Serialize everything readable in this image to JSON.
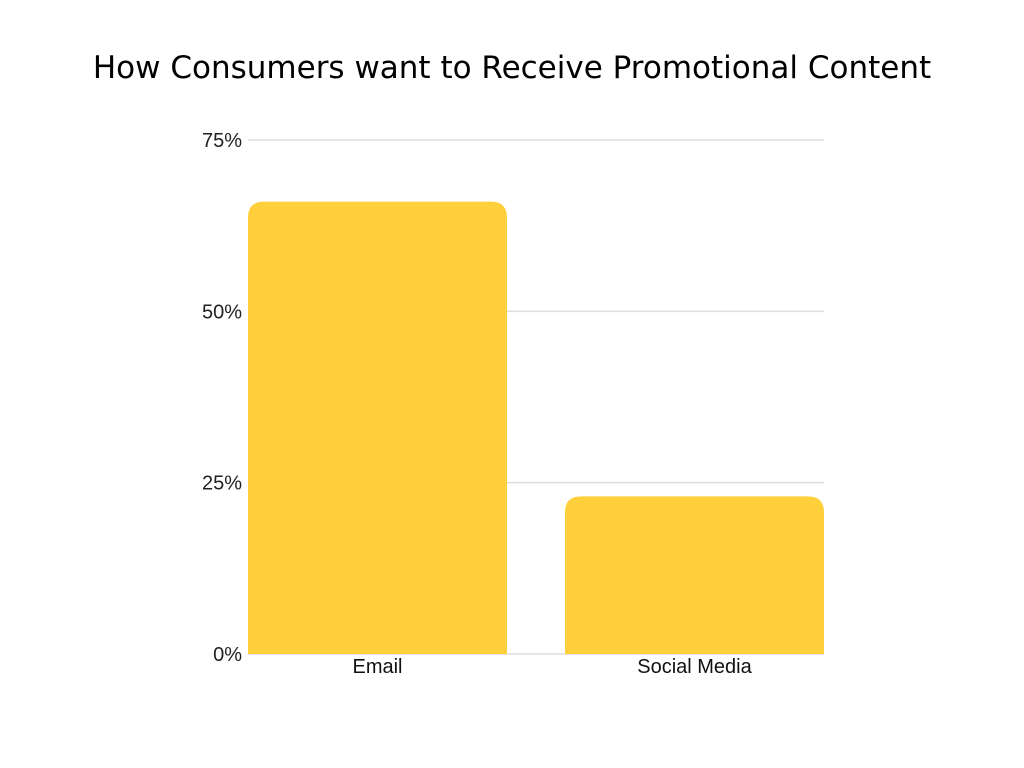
{
  "chart_data": {
    "type": "bar",
    "title": "How Consumers want to Receive Promotional Content",
    "categories": [
      "Email",
      "Social Media"
    ],
    "values": [
      66,
      23
    ],
    "ylim": [
      0,
      75
    ],
    "yticks": [
      0,
      25,
      50,
      75
    ],
    "ytick_labels": [
      "0%",
      "25%",
      "50%",
      "75%"
    ],
    "xlabel": "",
    "ylabel": "",
    "grid": true,
    "bar_color": "#FFD03B",
    "grid_color": "#dddddd"
  }
}
